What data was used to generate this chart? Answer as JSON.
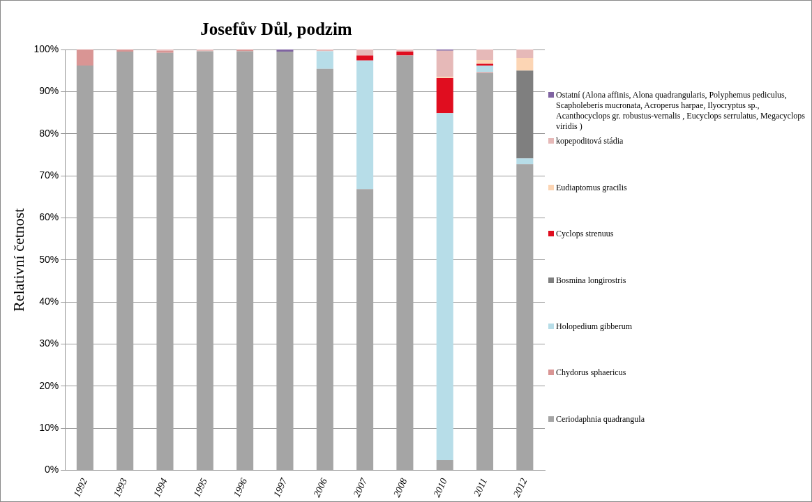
{
  "chart_data": {
    "type": "bar",
    "title": "Josefův Důl, podzim",
    "ylabel": "Relativní četnost",
    "stacked": true,
    "grid": "y",
    "legend": "right",
    "categories": [
      "1992",
      "1993",
      "1994",
      "1995",
      "1996",
      "1997",
      "2006",
      "2007",
      "2008",
      "2010",
      "2011",
      "2012"
    ],
    "ylim": [
      0,
      100
    ],
    "yticks": [
      {
        "value": 0,
        "label": "0%"
      },
      {
        "value": 10,
        "label": "10%"
      },
      {
        "value": 20,
        "label": "20%"
      },
      {
        "value": 30,
        "label": "30%"
      },
      {
        "value": 40,
        "label": "40%"
      },
      {
        "value": 50,
        "label": "50%"
      },
      {
        "value": 60,
        "label": "60%"
      },
      {
        "value": 70,
        "label": "70%"
      },
      {
        "value": 80,
        "label": "80%"
      },
      {
        "value": 90,
        "label": "90%"
      },
      {
        "value": 100,
        "label": "100%"
      }
    ],
    "series": [
      {
        "name": "Ceriodaphnia quadrangula",
        "color": "#a5a5a5",
        "values": [
          96.2,
          99.5,
          99.2,
          99.6,
          99.6,
          99.5,
          95.4,
          66.8,
          98.6,
          2.4,
          94.4,
          72.8
        ]
      },
      {
        "name": "Chydorus sphaericus",
        "color": "#d99594",
        "values": [
          3.8,
          0.5,
          0.5,
          null,
          0.4,
          null,
          null,
          null,
          null,
          null,
          0.2,
          null
        ]
      },
      {
        "name": "Holopedium gibberum",
        "color": "#b7dde8",
        "values": [
          null,
          null,
          null,
          null,
          null,
          null,
          4.2,
          30.6,
          null,
          82.5,
          1.6,
          1.3
        ]
      },
      {
        "name": "Bosmina longirostris",
        "color": "#7f7f7f",
        "values": [
          null,
          null,
          null,
          null,
          null,
          null,
          null,
          null,
          null,
          null,
          null,
          20.9
        ]
      },
      {
        "name": "Cyclops strenuus",
        "color": "#e00d1f",
        "values": [
          null,
          null,
          null,
          null,
          null,
          null,
          null,
          1.2,
          0.9,
          8.3,
          0.4,
          null
        ]
      },
      {
        "name": "Eudiaptomus gracilis",
        "color": "#fcd5b4",
        "values": [
          null,
          null,
          null,
          null,
          null,
          null,
          null,
          null,
          null,
          0.3,
          0.9,
          3.0
        ]
      },
      {
        "name": "kopepoditová stádia",
        "color": "#e6b9b8",
        "values": [
          null,
          null,
          0.3,
          0.4,
          null,
          null,
          0.4,
          1.4,
          0.5,
          6.2,
          2.5,
          2.0
        ]
      },
      {
        "name": "Ostatní (Alona affinis, Alona quadrangularis, Polyphemus pediculus, Scapholeberis mucronata, Acroperus harpae, Ilyocryptus sp., Acanthocyclops gr. robustus-vernalis , Eucyclops serrulatus, Megacyclops viridis )",
        "color": "#8064a2",
        "values": [
          null,
          null,
          null,
          null,
          null,
          0.5,
          null,
          null,
          null,
          0.3,
          null,
          null
        ]
      }
    ]
  }
}
